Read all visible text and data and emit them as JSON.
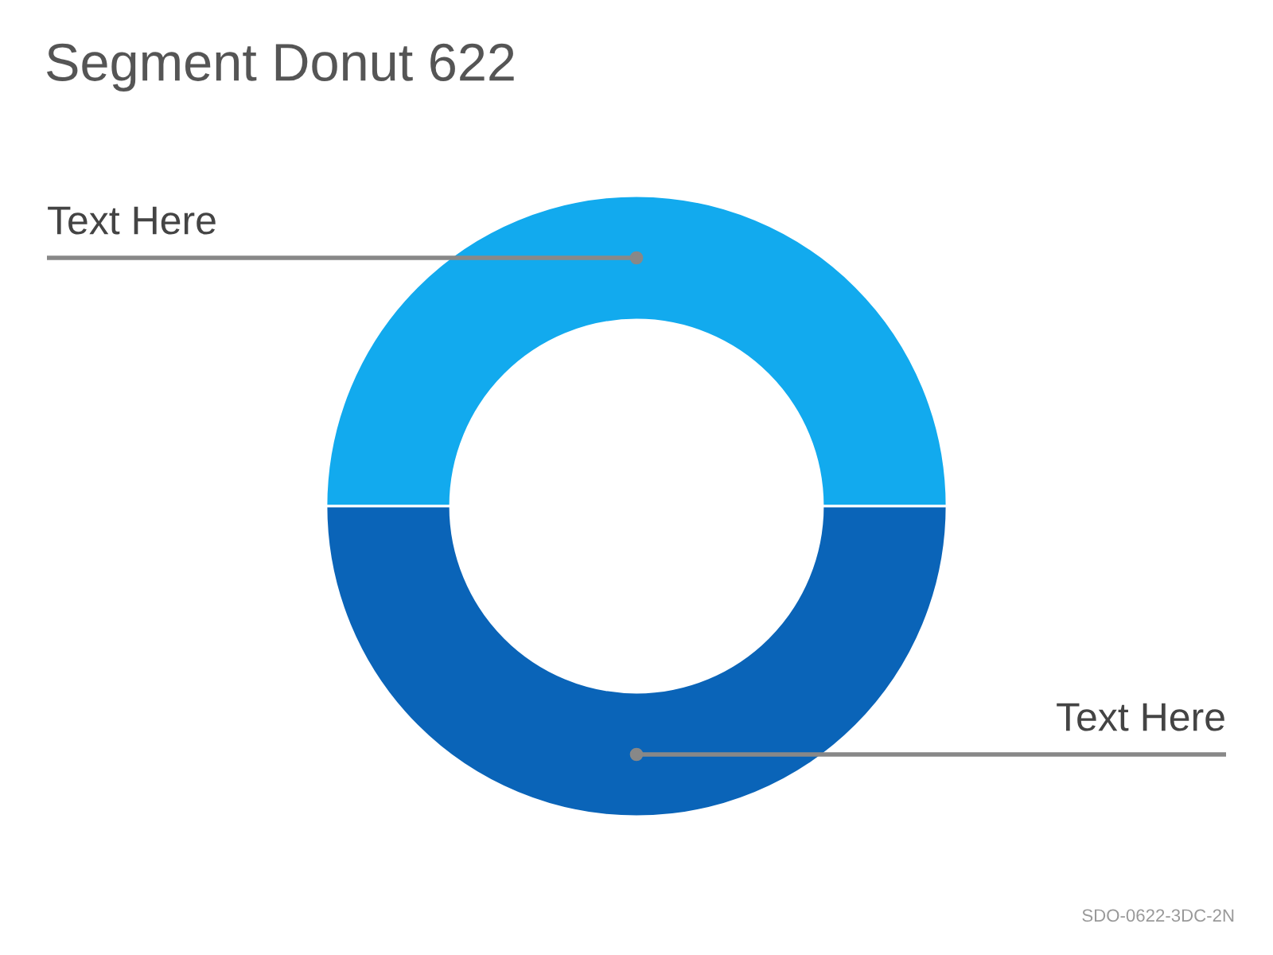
{
  "chart_data": {
    "type": "donut",
    "title": "Segment Donut 622",
    "categories": [
      "Text Here",
      "Text Here"
    ],
    "values": [
      50,
      50
    ],
    "colors": [
      "#12aaee",
      "#0a64b8"
    ],
    "annotations": [
      "SDO-0622-3DC-2N"
    ]
  }
}
